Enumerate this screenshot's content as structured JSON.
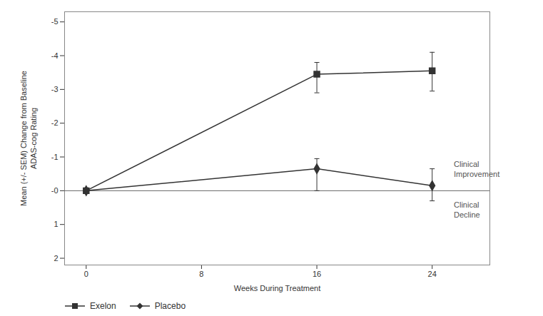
{
  "chart_data": {
    "type": "line",
    "x": [
      0,
      16,
      24
    ],
    "series": [
      {
        "name": "Exelon",
        "color": "#333333",
        "marker": "square",
        "line_style": "solid",
        "values": [
          0,
          -3.45,
          -3.55
        ],
        "yerr_lower": [
          0,
          0.35,
          0.55
        ],
        "yerr_upper": [
          0,
          0.55,
          0.6
        ]
      },
      {
        "name": "Placebo",
        "color": "#333333",
        "marker": "diamond",
        "line_style": "solid",
        "values": [
          0,
          -0.65,
          -0.15
        ],
        "yerr_lower": [
          0,
          0.3,
          0.5
        ],
        "yerr_upper": [
          0,
          0.65,
          0.45
        ]
      }
    ],
    "xlabel": "Weeks During Treatment",
    "ylabel": "Mean (+/- SEM) Change from Baseline\nADAS-cog Rating",
    "xlim": [
      -1.5,
      28
    ],
    "ylim": [
      2.2,
      -5.3
    ],
    "xticks": [
      0,
      8,
      16,
      24
    ],
    "yticks": [
      -5,
      -4,
      -3,
      -2,
      -1,
      {
        "value": 0,
        "label": "-0"
      },
      1,
      2
    ],
    "annotations": [
      {
        "text": "Clinical\nImprovement",
        "x": 25.5,
        "y": -0.65
      },
      {
        "text": "Clinical\nDecline",
        "x": 25.5,
        "y": 0.55
      }
    ],
    "hline": {
      "y": 0,
      "color": "#666666"
    },
    "legend": "lower left",
    "grid": false
  }
}
